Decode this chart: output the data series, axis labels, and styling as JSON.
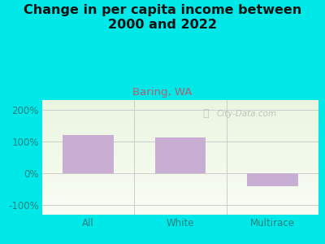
{
  "title": "Change in per capita income between\n2000 and 2022",
  "subtitle": "Baring, WA",
  "categories": [
    "All",
    "White",
    "Multirace"
  ],
  "values": [
    120,
    113,
    -40
  ],
  "bar_color": "#c9aed4",
  "background_color": "#00e8e8",
  "plot_bg_top": "#eaf5e0",
  "plot_bg_bottom": "#f8fdf4",
  "title_fontsize": 11.5,
  "subtitle_fontsize": 9.5,
  "subtitle_color": "#b06070",
  "title_color": "#111111",
  "tick_color": "#2a8080",
  "ylim": [
    -130,
    230
  ],
  "yticks": [
    -100,
    0,
    100,
    200
  ],
  "ytick_labels": [
    "-100%",
    "0%",
    "100%",
    "200%"
  ],
  "watermark": "City-Data.com",
  "grid_color": "#cccccc",
  "bar_width": 0.55
}
